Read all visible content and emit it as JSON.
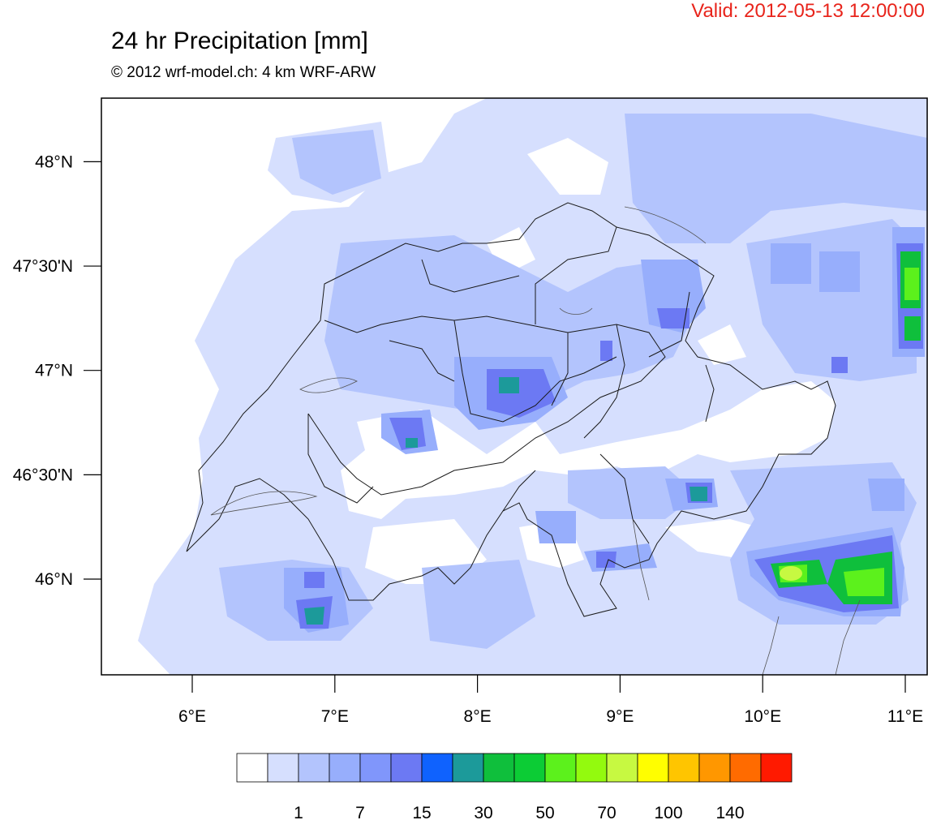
{
  "header": {
    "valid": "Valid: 2012-05-13 12:00:00",
    "title": "24 hr Precipitation [mm]",
    "subtitle": "© 2012 wrf-model.ch: 4 km WRF-ARW"
  },
  "colors": {
    "valid_text": "#e8241b",
    "axis": "#000000",
    "border": "#1a1a1a"
  },
  "map": {
    "type": "filled-contour precipitation map",
    "lon_range": [
      5.5,
      11.15
    ],
    "lat_range": [
      45.6,
      48.3
    ],
    "lat_ticks": [
      {
        "value": 48.0,
        "label": "48°N"
      },
      {
        "value": 47.5,
        "label": "47°30'N"
      },
      {
        "value": 47.0,
        "label": "47°N"
      },
      {
        "value": 46.5,
        "label": "46°30'N"
      },
      {
        "value": 46.0,
        "label": "46°N"
      }
    ],
    "lon_ticks": [
      {
        "value": 6,
        "label": "6°E"
      },
      {
        "value": 7,
        "label": "7°E"
      },
      {
        "value": 8,
        "label": "8°E"
      },
      {
        "value": 9,
        "label": "9°E"
      },
      {
        "value": 10,
        "label": "10°E"
      },
      {
        "value": 11,
        "label": "11°E"
      }
    ]
  },
  "colorbar": {
    "levels": [
      "",
      "1",
      "",
      "7",
      "",
      "15",
      "",
      "30",
      "",
      "50",
      "",
      "70",
      "",
      "100",
      "",
      "140",
      ""
    ],
    "colors": [
      "#ffffff",
      "#d6dffe",
      "#b3c4fd",
      "#97aefc",
      "#8096fb",
      "#6c79f3",
      "#0f62fe",
      "#1c9a9a",
      "#0fbf3c",
      "#0ccc35",
      "#5cf11c",
      "#93fa0e",
      "#c7f941",
      "#fffe00",
      "#ffc500",
      "#ff9700",
      "#ff6b00",
      "#ff1a00"
    ]
  }
}
